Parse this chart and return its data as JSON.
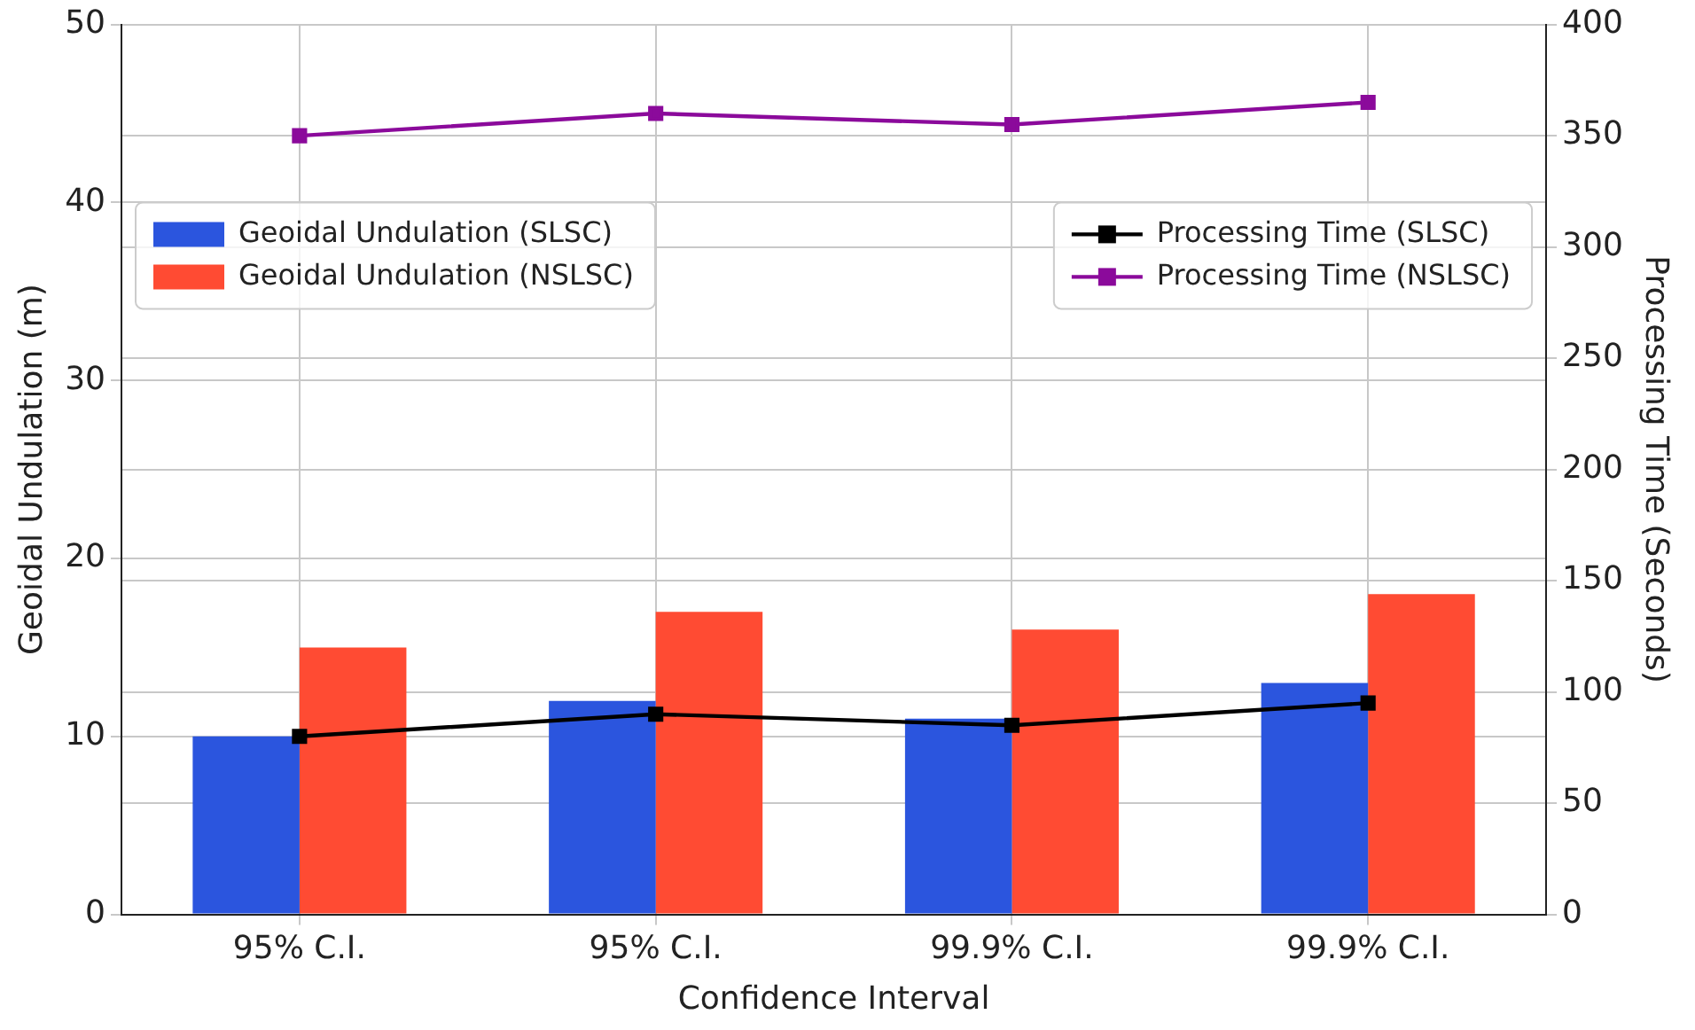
{
  "chart_data": {
    "type": "bar",
    "xlabel": "Confidence Interval",
    "ylabel": "Geoidal Undulation (m)",
    "y2label": "Processing Time (Seconds)",
    "categories": [
      "95% C.I.",
      "95% C.I.",
      "99.9% C.I.",
      "99.9% C.I."
    ],
    "series": [
      {
        "name": "Geoidal Undulation (SLSC)",
        "color": "#2b55de",
        "values": [
          10,
          12,
          11,
          13
        ]
      },
      {
        "name": "Geoidal Undulation (NSLSC)",
        "color": "#ff4b33",
        "values": [
          15,
          17,
          16,
          18
        ]
      },
      {
        "name": "Processing Time (SLSC)",
        "type": "line",
        "axis": "y2",
        "color": "#000000",
        "values": [
          80,
          90,
          85,
          95
        ]
      },
      {
        "name": "Processing Time (NSLSC)",
        "type": "line",
        "axis": "y2",
        "color": "#8b0a9b",
        "values": [
          350,
          360,
          355,
          365
        ]
      }
    ],
    "ylim": [
      0,
      50
    ],
    "yticks": [
      0,
      10,
      20,
      30,
      40,
      50
    ],
    "y2lim": [
      0,
      400
    ],
    "y2ticks": [
      0,
      50,
      100,
      150,
      200,
      250,
      300,
      350,
      400
    ],
    "grid": true,
    "legend": "top",
    "marker": "square",
    "line_style": "solid"
  }
}
